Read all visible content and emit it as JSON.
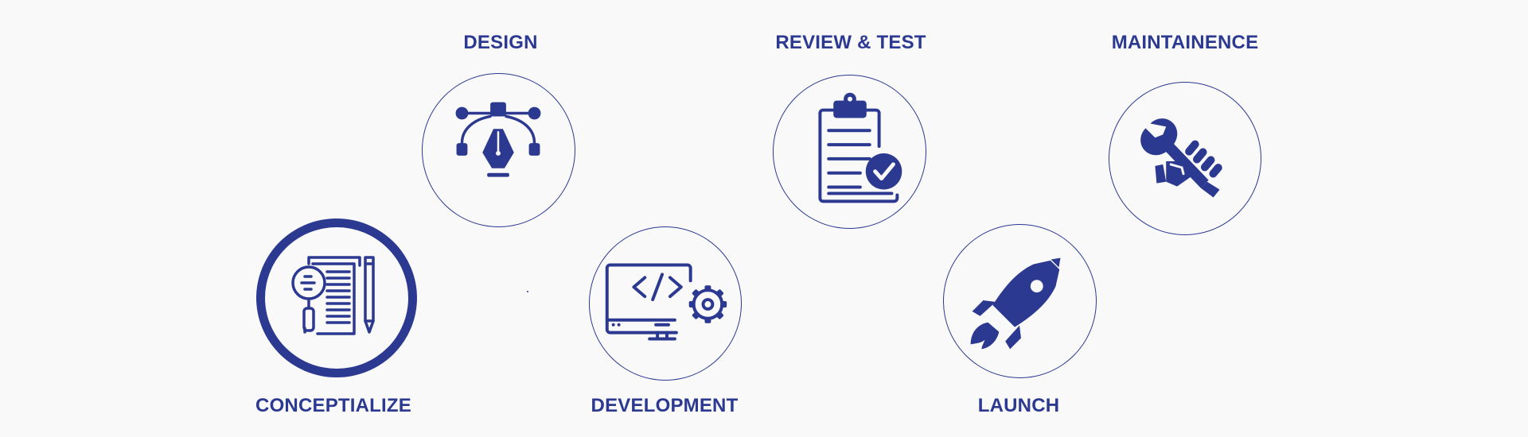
{
  "accent_color": "#2b3990",
  "background_color": "#f9f9fa",
  "steps": [
    {
      "label": "CONCEPTIALIZE",
      "icon": "document-magnifier-pencil-icon"
    },
    {
      "label": "DESIGN",
      "icon": "vector-pen-tool-icon"
    },
    {
      "label": "DEVELOPMENT",
      "icon": "code-monitor-gear-icon"
    },
    {
      "label": "REVIEW & TEST",
      "icon": "clipboard-check-icon"
    },
    {
      "label": "LAUNCH",
      "icon": "rocket-icon"
    },
    {
      "label": "MAINTAINENCE",
      "icon": "wrench-hand-icon"
    }
  ]
}
